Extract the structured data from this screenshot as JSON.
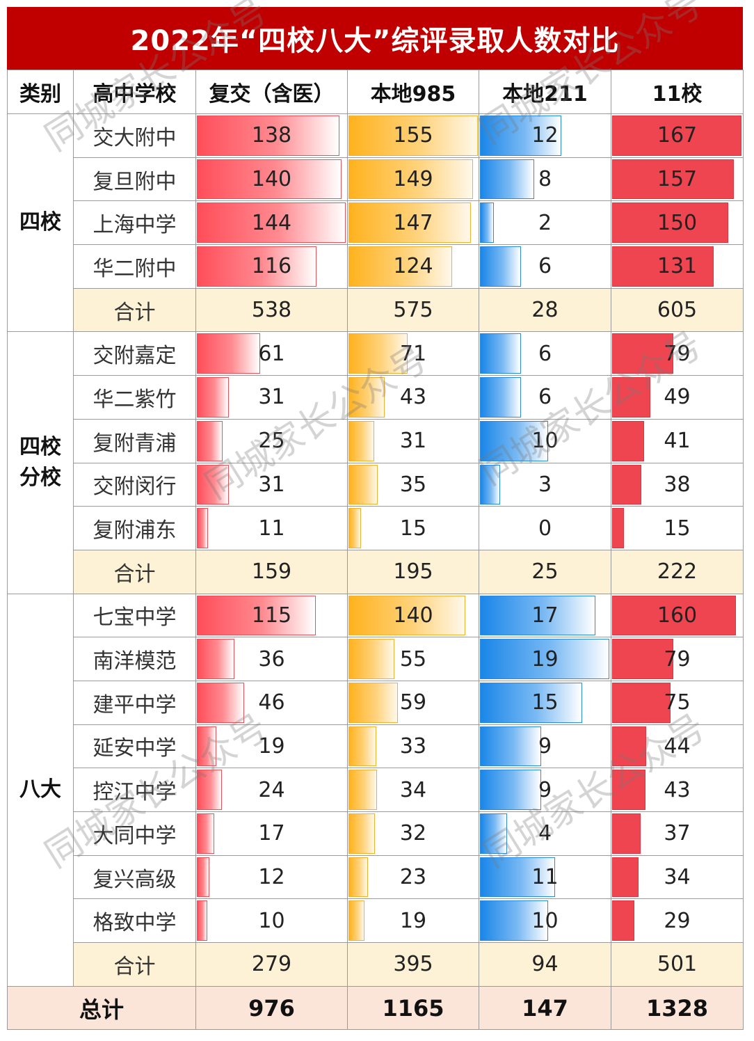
{
  "title": "2022年“四校八大”综评录取人数对比",
  "headers": [
    "类别",
    "高中学校",
    "复交（含医）",
    "本地985",
    "本地211",
    "11校"
  ],
  "groups": [
    {
      "category": "四校",
      "rows": [
        {
          "school": "交大附中",
          "fujiao": "138",
          "local985": "155",
          "local211": "12",
          "eleven": "167"
        },
        {
          "school": "复旦附中",
          "fujiao": "140",
          "local985": "149",
          "local211": "8",
          "eleven": "157"
        },
        {
          "school": "上海中学",
          "fujiao": "144",
          "local985": "147",
          "local211": "2",
          "eleven": "150"
        },
        {
          "school": "华二附中",
          "fujiao": "116",
          "local985": "124",
          "local211": "6",
          "eleven": "131"
        }
      ],
      "subtotal": {
        "label": "合计",
        "fujiao": "538",
        "local985": "575",
        "local211": "28",
        "eleven": "605"
      }
    },
    {
      "category": "四校分校",
      "rows": [
        {
          "school": "交附嘉定",
          "fujiao": "61",
          "local985": "71",
          "local211": "6",
          "eleven": "79"
        },
        {
          "school": "华二紫竹",
          "fujiao": "31",
          "local985": "43",
          "local211": "6",
          "eleven": "49"
        },
        {
          "school": "复附青浦",
          "fujiao": "25",
          "local985": "31",
          "local211": "10",
          "eleven": "41"
        },
        {
          "school": "交附闵行",
          "fujiao": "31",
          "local985": "35",
          "local211": "3",
          "eleven": "38"
        },
        {
          "school": "复附浦东",
          "fujiao": "11",
          "local985": "15",
          "local211": "0",
          "eleven": "15"
        }
      ],
      "subtotal": {
        "label": "合计",
        "fujiao": "159",
        "local985": "195",
        "local211": "25",
        "eleven": "222"
      }
    },
    {
      "category": "八大",
      "rows": [
        {
          "school": "七宝中学",
          "fujiao": "115",
          "local985": "140",
          "local211": "17",
          "eleven": "160"
        },
        {
          "school": "南洋模范",
          "fujiao": "36",
          "local985": "55",
          "local211": "19",
          "eleven": "79"
        },
        {
          "school": "建平中学",
          "fujiao": "46",
          "local985": "59",
          "local211": "15",
          "eleven": "75"
        },
        {
          "school": "延安中学",
          "fujiao": "19",
          "local985": "33",
          "local211": "9",
          "eleven": "44"
        },
        {
          "school": "控江中学",
          "fujiao": "24",
          "local985": "34",
          "local211": "9",
          "eleven": "43"
        },
        {
          "school": "大同中学",
          "fujiao": "17",
          "local985": "32",
          "local211": "4",
          "eleven": "37"
        },
        {
          "school": "复兴高级",
          "fujiao": "12",
          "local985": "23",
          "local211": "11",
          "eleven": "34"
        },
        {
          "school": "格致中学",
          "fujiao": "10",
          "local985": "19",
          "local211": "10",
          "eleven": "29"
        }
      ],
      "subtotal": {
        "label": "合计",
        "fujiao": "279",
        "local985": "395",
        "local211": "94",
        "eleven": "501"
      }
    }
  ],
  "total": {
    "label": "总计",
    "fujiao": "976",
    "local985": "1165",
    "local211": "147",
    "eleven": "1328"
  },
  "watermark": "同城家长公众号",
  "colors": {
    "title_bg": "#c00000",
    "fujiao_bar": "#ff4e5a",
    "local985_bar": "#ffb21e",
    "local211_bar": "#1a86e8",
    "eleven_bar": "#ee4550",
    "subtotal_bg": "#fdf1d6",
    "total_bg": "#fbe4d8"
  },
  "chart_data": {
    "type": "table",
    "title": "2022年“四校八大”综评录取人数对比",
    "columns": [
      "类别",
      "高中学校",
      "复交（含医）",
      "本地985",
      "本地211",
      "11校"
    ],
    "categories": [
      "交大附中",
      "复旦附中",
      "上海中学",
      "华二附中",
      "交附嘉定",
      "华二紫竹",
      "复附青浦",
      "交附闵行",
      "复附浦东",
      "七宝中学",
      "南洋模范",
      "建平中学",
      "延安中学",
      "控江中学",
      "大同中学",
      "复兴高级",
      "格致中学"
    ],
    "groups": {
      "四校": [
        "交大附中",
        "复旦附中",
        "上海中学",
        "华二附中"
      ],
      "四校分校": [
        "交附嘉定",
        "华二紫竹",
        "复附青浦",
        "交附闵行",
        "复附浦东"
      ],
      "八大": [
        "七宝中学",
        "南洋模范",
        "建平中学",
        "延安中学",
        "控江中学",
        "大同中学",
        "复兴高级",
        "格致中学"
      ]
    },
    "series": [
      {
        "name": "复交（含医）",
        "values": [
          138,
          140,
          144,
          116,
          61,
          31,
          25,
          31,
          11,
          115,
          36,
          46,
          19,
          24,
          17,
          12,
          10
        ]
      },
      {
        "name": "本地985",
        "values": [
          155,
          149,
          147,
          124,
          71,
          43,
          31,
          35,
          15,
          140,
          55,
          59,
          33,
          34,
          32,
          23,
          19
        ]
      },
      {
        "name": "本地211",
        "values": [
          12,
          8,
          2,
          6,
          6,
          6,
          10,
          3,
          0,
          17,
          19,
          15,
          9,
          9,
          4,
          11,
          10
        ]
      },
      {
        "name": "11校",
        "values": [
          167,
          157,
          150,
          131,
          79,
          49,
          41,
          38,
          15,
          160,
          79,
          75,
          44,
          43,
          37,
          34,
          29
        ]
      }
    ],
    "subtotals": {
      "四校": {
        "复交（含医）": 538,
        "本地985": 575,
        "本地211": 28,
        "11校": 605
      },
      "四校分校": {
        "复交（含医）": 159,
        "本地985": 195,
        "本地211": 25,
        "11校": 222
      },
      "八大": {
        "复交（含医）": 279,
        "本地985": 395,
        "本地211": 94,
        "11校": 501
      }
    },
    "total": {
      "复交（含医）": 976,
      "本地985": 1165,
      "本地211": 147,
      "11校": 1328
    },
    "bar_max": {
      "复交（含医）": 144,
      "本地985": 155,
      "本地211": 19,
      "11校": 167
    }
  }
}
